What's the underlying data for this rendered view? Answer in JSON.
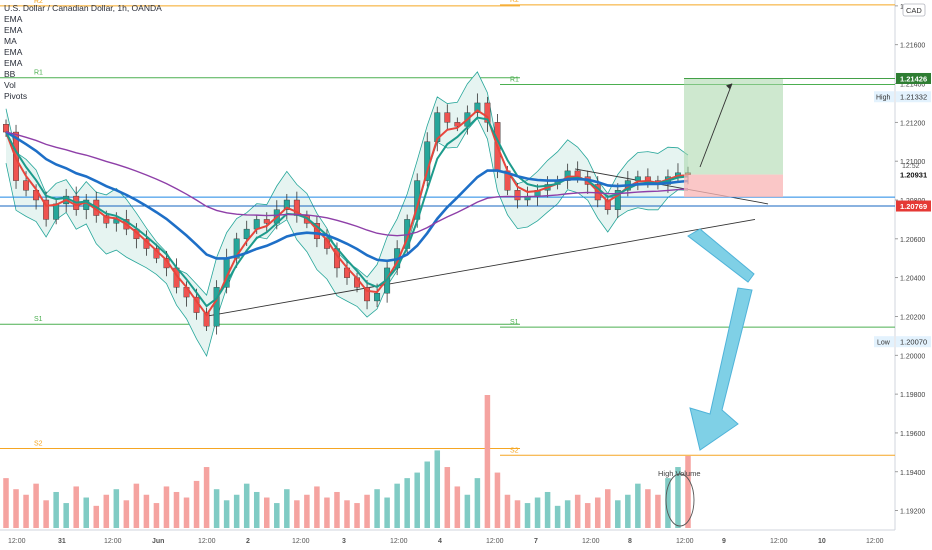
{
  "legend": {
    "title": "U.S. Dollar / Canadian Dollar, 1h, OANDA",
    "items": [
      "EMA",
      "EMA",
      "MA",
      "EMA",
      "EMA",
      "BB",
      "Vol",
      "Pivots"
    ]
  },
  "currency": "CAD",
  "countdown": "12:52",
  "price_axis": {
    "ticks": [
      "1.21800",
      "1.21600",
      "1.21400",
      "1.21200",
      "1.21000",
      "1.20800",
      "1.20600",
      "1.20400",
      "1.20200",
      "1.20000",
      "1.19800",
      "1.19600",
      "1.19400",
      "1.19200"
    ],
    "current_price": "1.20931",
    "high_label": "High",
    "high_price": "1.21332",
    "low_label": "Low",
    "low_price": "1.20070",
    "target_price": "1.21426",
    "stop_price": "1.20769"
  },
  "time_axis": [
    "12:00",
    "31",
    "12:00",
    "Jun",
    "12:00",
    "2",
    "12:00",
    "3",
    "12:00",
    "4",
    "12:00",
    "7",
    "12:00",
    "8",
    "12:00",
    "9",
    "12:00",
    "10",
    "12:00"
  ],
  "pivots": {
    "r2_left": "R2",
    "r1_left": "R1",
    "s1_left": "S1",
    "s2_left": "S2",
    "r2_right": "R2",
    "r1_right": "R1",
    "s1_right": "S1",
    "s2_right": "S2"
  },
  "annotation_high_volume": "High Volume",
  "colors": {
    "up": "#26a69a",
    "down": "#ef5350",
    "ema_red": "#e8453c",
    "ema_teal": "#1d9b8c",
    "ma_blue": "#1e6fc7",
    "ema_purple": "#8e3fa8",
    "bb_fill": "#e6f4f1",
    "bb_line": "#26a69a",
    "pivot_r": "#f5a623",
    "pivot_s": "#4caf50",
    "arrow_fill": "#7fd0e6",
    "target": "#a5d6a7",
    "stop": "#f8b4b4"
  },
  "chart_data": {
    "type": "candlestick",
    "symbol": "USDCAD",
    "interval": "1h",
    "ylim": [
      1.191,
      1.2182
    ],
    "price_levels": {
      "r2": 1.218,
      "r1": 1.2143,
      "s1": 1.2016,
      "s2": 1.1952
    },
    "close_series": [
      1.2115,
      1.209,
      1.2085,
      1.208,
      1.207,
      1.2078,
      1.2082,
      1.2075,
      1.208,
      1.2072,
      1.2068,
      1.207,
      1.2065,
      1.206,
      1.2055,
      1.205,
      1.2045,
      1.2035,
      1.203,
      1.2022,
      1.2015,
      1.2035,
      1.205,
      1.206,
      1.2065,
      1.207,
      1.2068,
      1.2075,
      1.208,
      1.2072,
      1.2068,
      1.206,
      1.2055,
      1.2045,
      1.204,
      1.2035,
      1.2028,
      1.2032,
      1.2045,
      1.2055,
      1.207,
      1.209,
      1.211,
      1.2125,
      1.212,
      1.2118,
      1.2125,
      1.213,
      1.212,
      1.2095,
      1.2085,
      1.208,
      1.2082,
      1.2085,
      1.2088,
      1.209,
      1.2095,
      1.2092,
      1.2088,
      1.208,
      1.2075,
      1.2085,
      1.209,
      1.2092,
      1.209,
      1.2088,
      1.2092,
      1.2094,
      1.2093
    ],
    "volume_series": [
      18,
      14,
      12,
      16,
      10,
      13,
      9,
      15,
      11,
      8,
      12,
      14,
      10,
      16,
      12,
      9,
      15,
      13,
      11,
      17,
      22,
      14,
      10,
      12,
      16,
      13,
      11,
      9,
      14,
      10,
      12,
      15,
      11,
      13,
      10,
      9,
      12,
      14,
      11,
      16,
      18,
      20,
      24,
      28,
      22,
      15,
      12,
      18,
      48,
      20,
      12,
      10,
      9,
      11,
      13,
      8,
      10,
      12,
      9,
      11,
      14,
      10,
      12,
      16,
      14,
      12,
      18,
      22,
      26
    ]
  }
}
